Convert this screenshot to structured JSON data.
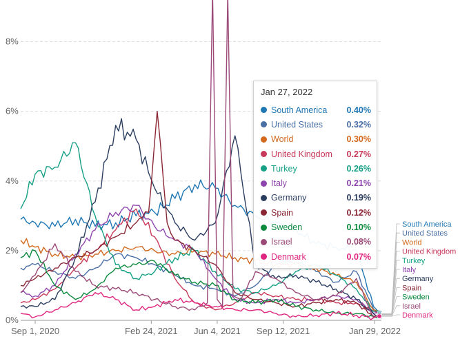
{
  "chart_data": {
    "type": "line",
    "title": "",
    "xlabel": "",
    "ylabel": "",
    "ylim": [
      0,
      9
    ],
    "y_ticks": [
      "0%",
      "2%",
      "4%",
      "6%",
      "8%"
    ],
    "y_tick_values": [
      0,
      2,
      4,
      6,
      8
    ],
    "x_ticks": [
      "Sep 1, 2020",
      "Feb 24, 2021",
      "Jun 4, 2021",
      "Sep 12, 2021",
      "Jan 29, 2022"
    ],
    "x_tick_values": [
      "2020-09-01",
      "2021-02-24",
      "2021-06-04",
      "2021-09-12",
      "2022-01-29"
    ],
    "xlim": [
      "2020-08-10",
      "2022-02-08"
    ],
    "grid": true,
    "legend": "right-end",
    "tooltip": {
      "date": "Jan 27, 2022",
      "rows": [
        {
          "name": "South America",
          "value": "0.40%",
          "color": "#1f77b4"
        },
        {
          "name": "United States",
          "value": "0.32%",
          "color": "#4a6fa5"
        },
        {
          "name": "World",
          "value": "0.30%",
          "color": "#d2691e"
        },
        {
          "name": "United Kingdom",
          "value": "0.27%",
          "color": "#c8385a"
        },
        {
          "name": "Turkey",
          "value": "0.26%",
          "color": "#16a085"
        },
        {
          "name": "Italy",
          "value": "0.21%",
          "color": "#8e44ad"
        },
        {
          "name": "Germany",
          "value": "0.19%",
          "color": "#2c3e60"
        },
        {
          "name": "Spain",
          "value": "0.12%",
          "color": "#8b2635"
        },
        {
          "name": "Sweden",
          "value": "0.10%",
          "color": "#0b8a3e"
        },
        {
          "name": "Israel",
          "value": "0.08%",
          "color": "#9b4a78"
        },
        {
          "name": "Denmark",
          "value": "0.07%",
          "color": "#e0267f"
        }
      ]
    },
    "series": [
      {
        "name": "South America",
        "color": "#1f77b4",
        "x": [
          "2020-08-10",
          "2020-09-01",
          "2020-10-01",
          "2020-11-01",
          "2020-12-01",
          "2021-01-01",
          "2021-02-01",
          "2021-03-01",
          "2021-04-01",
          "2021-05-01",
          "2021-06-01",
          "2021-07-01",
          "2021-08-01",
          "2021-09-01",
          "2021-10-01",
          "2021-11-01",
          "2021-12-01",
          "2022-01-01",
          "2022-01-27",
          "2022-02-08"
        ],
        "y": [
          2.9,
          2.8,
          2.7,
          2.9,
          2.7,
          2.8,
          3.0,
          3.1,
          3.5,
          3.9,
          3.8,
          3.3,
          3.0,
          2.8,
          2.6,
          2.2,
          2.1,
          2.0,
          0.4,
          0.25
        ]
      },
      {
        "name": "United States",
        "color": "#4a6fa5",
        "x": [
          "2020-08-10",
          "2020-09-01",
          "2020-10-01",
          "2020-11-01",
          "2020-12-01",
          "2021-01-01",
          "2021-02-01",
          "2021-03-01",
          "2021-04-01",
          "2021-05-01",
          "2021-06-01",
          "2021-07-01",
          "2021-08-01",
          "2021-09-01",
          "2021-10-01",
          "2021-11-01",
          "2021-12-01",
          "2022-01-01",
          "2022-01-27",
          "2022-02-08"
        ],
        "y": [
          1.5,
          1.6,
          1.4,
          1.2,
          1.5,
          1.9,
          1.8,
          1.6,
          1.3,
          1.0,
          0.9,
          0.7,
          1.0,
          1.6,
          1.7,
          1.4,
          1.1,
          1.4,
          0.32,
          0.22
        ]
      },
      {
        "name": "World",
        "color": "#d2691e",
        "x": [
          "2020-08-10",
          "2020-09-01",
          "2020-10-01",
          "2020-11-01",
          "2020-12-01",
          "2021-01-01",
          "2021-02-01",
          "2021-03-01",
          "2021-04-01",
          "2021-05-01",
          "2021-06-01",
          "2021-07-01",
          "2021-08-01",
          "2021-09-01",
          "2021-10-01",
          "2021-11-01",
          "2021-12-01",
          "2022-01-01",
          "2022-01-27",
          "2022-02-08"
        ],
        "y": [
          2.3,
          2.1,
          1.9,
          1.8,
          1.9,
          2.0,
          2.1,
          2.0,
          1.9,
          2.0,
          1.9,
          1.8,
          1.7,
          1.6,
          1.6,
          1.5,
          1.3,
          1.1,
          0.3,
          0.2
        ]
      },
      {
        "name": "United Kingdom",
        "color": "#c8385a",
        "x": [
          "2020-08-10",
          "2020-09-01",
          "2020-10-01",
          "2020-11-01",
          "2020-12-01",
          "2021-01-01",
          "2021-02-01",
          "2021-03-01",
          "2021-04-01",
          "2021-05-01",
          "2021-06-01",
          "2021-07-01",
          "2021-08-01",
          "2021-09-01",
          "2021-10-01",
          "2021-11-01",
          "2021-12-01",
          "2022-01-01",
          "2022-01-27",
          "2022-02-08"
        ],
        "y": [
          0.5,
          0.6,
          0.9,
          1.5,
          2.0,
          2.6,
          3.2,
          2.4,
          1.2,
          0.5,
          0.3,
          0.5,
          0.8,
          0.7,
          0.6,
          0.6,
          0.5,
          0.5,
          0.27,
          0.18
        ]
      },
      {
        "name": "Turkey",
        "color": "#16a085",
        "x": [
          "2020-08-10",
          "2020-09-01",
          "2020-10-01",
          "2020-11-01",
          "2020-12-01",
          "2021-01-01",
          "2021-02-01",
          "2021-03-01",
          "2021-04-01",
          "2021-05-01",
          "2021-06-01",
          "2021-07-01",
          "2021-08-01",
          "2021-09-01",
          "2021-10-01",
          "2021-11-01",
          "2021-12-01",
          "2022-01-01",
          "2022-01-27",
          "2022-02-08"
        ],
        "y": [
          3.2,
          4.2,
          4.4,
          5.1,
          3.0,
          1.6,
          1.2,
          1.4,
          1.8,
          2.0,
          1.4,
          0.9,
          0.8,
          1.0,
          1.4,
          1.6,
          1.3,
          0.9,
          0.26,
          0.2
        ]
      },
      {
        "name": "Italy",
        "color": "#8e44ad",
        "x": [
          "2020-08-10",
          "2020-09-01",
          "2020-10-01",
          "2020-11-01",
          "2020-12-01",
          "2021-01-01",
          "2021-02-01",
          "2021-03-01",
          "2021-04-01",
          "2021-05-01",
          "2021-06-01",
          "2021-07-01",
          "2021-08-01",
          "2021-09-01",
          "2021-10-01",
          "2021-11-01",
          "2021-12-01",
          "2022-01-01",
          "2022-01-27",
          "2022-02-08"
        ],
        "y": [
          0.8,
          0.7,
          1.0,
          1.9,
          2.6,
          3.1,
          3.3,
          2.7,
          2.3,
          2.0,
          1.2,
          0.6,
          0.5,
          0.6,
          0.5,
          0.6,
          0.7,
          0.6,
          0.21,
          0.16
        ]
      },
      {
        "name": "Germany",
        "color": "#2c3e60",
        "x": [
          "2020-08-10",
          "2020-09-01",
          "2020-10-01",
          "2020-11-01",
          "2020-12-01",
          "2021-01-01",
          "2021-02-01",
          "2021-03-01",
          "2021-04-01",
          "2021-05-01",
          "2021-06-01",
          "2021-07-01",
          "2021-08-01",
          "2021-09-01",
          "2021-10-01",
          "2021-11-01",
          "2021-12-01",
          "2022-01-01",
          "2022-01-27",
          "2022-02-08"
        ],
        "y": [
          0.4,
          0.4,
          0.6,
          1.8,
          3.4,
          5.6,
          5.2,
          3.8,
          2.8,
          2.3,
          2.8,
          5.3,
          1.6,
          1.2,
          1.3,
          1.1,
          0.9,
          0.6,
          0.19,
          0.14
        ]
      },
      {
        "name": "Spain",
        "color": "#8b2635",
        "x": [
          "2020-08-10",
          "2020-09-01",
          "2020-10-01",
          "2020-11-01",
          "2020-12-01",
          "2021-01-01",
          "2021-02-01",
          "2021-02-20",
          "2021-03-05",
          "2021-03-20",
          "2021-04-01",
          "2021-05-01",
          "2021-06-01",
          "2021-07-01",
          "2021-08-01",
          "2021-09-01",
          "2021-10-01",
          "2021-11-01",
          "2021-12-01",
          "2022-01-01",
          "2022-01-27",
          "2022-02-08"
        ],
        "y": [
          1.0,
          1.2,
          1.5,
          1.8,
          2.0,
          2.4,
          2.8,
          3.1,
          6.0,
          2.8,
          2.3,
          2.0,
          1.6,
          0.8,
          0.6,
          0.5,
          0.4,
          0.5,
          0.6,
          0.5,
          0.12,
          0.1
        ]
      },
      {
        "name": "Sweden",
        "color": "#0b8a3e",
        "x": [
          "2020-08-10",
          "2020-09-01",
          "2020-10-01",
          "2020-11-01",
          "2020-12-01",
          "2021-01-01",
          "2021-02-01",
          "2021-03-01",
          "2021-04-01",
          "2021-05-01",
          "2021-06-01",
          "2021-07-01",
          "2021-08-01",
          "2021-09-01",
          "2021-10-01",
          "2021-11-01",
          "2021-12-01",
          "2022-01-01",
          "2022-01-27",
          "2022-02-08"
        ],
        "y": [
          1.8,
          2.0,
          1.0,
          0.6,
          0.9,
          1.5,
          1.6,
          1.7,
          1.3,
          1.1,
          1.0,
          0.6,
          0.5,
          0.6,
          0.4,
          0.3,
          0.2,
          0.2,
          0.1,
          0.08
        ]
      },
      {
        "name": "Israel",
        "color": "#9b4a78",
        "x": [
          "2020-08-10",
          "2020-09-01",
          "2020-10-01",
          "2020-11-01",
          "2020-12-01",
          "2021-01-01",
          "2021-02-01",
          "2021-03-01",
          "2021-04-01",
          "2021-05-01",
          "2021-05-20",
          "2021-05-28",
          "2021-06-04",
          "2021-06-12",
          "2021-06-20",
          "2021-06-28",
          "2021-07-10",
          "2021-08-01",
          "2021-09-01",
          "2021-10-01",
          "2021-11-01",
          "2021-12-01",
          "2022-01-01",
          "2022-01-27",
          "2022-02-08"
        ],
        "y": [
          0.8,
          1.3,
          2.2,
          1.4,
          1.0,
          0.9,
          0.8,
          0.6,
          0.4,
          0.3,
          0.5,
          9.5,
          0.6,
          0.4,
          9.4,
          0.7,
          0.6,
          1.4,
          1.2,
          0.8,
          0.6,
          0.7,
          1.2,
          0.08,
          0.07
        ]
      },
      {
        "name": "Denmark",
        "color": "#e0267f",
        "x": [
          "2020-08-10",
          "2020-09-01",
          "2020-10-01",
          "2020-11-01",
          "2020-12-01",
          "2021-01-01",
          "2021-02-01",
          "2021-03-01",
          "2021-04-01",
          "2021-05-01",
          "2021-06-01",
          "2021-07-01",
          "2021-08-01",
          "2021-09-01",
          "2021-10-01",
          "2021-11-01",
          "2021-12-01",
          "2022-01-01",
          "2022-01-27",
          "2022-02-08"
        ],
        "y": [
          0.2,
          0.1,
          0.3,
          0.5,
          0.8,
          0.6,
          0.3,
          0.4,
          0.6,
          0.5,
          0.4,
          0.3,
          0.3,
          0.2,
          0.1,
          0.15,
          0.2,
          0.15,
          0.07,
          0.06
        ]
      }
    ]
  }
}
